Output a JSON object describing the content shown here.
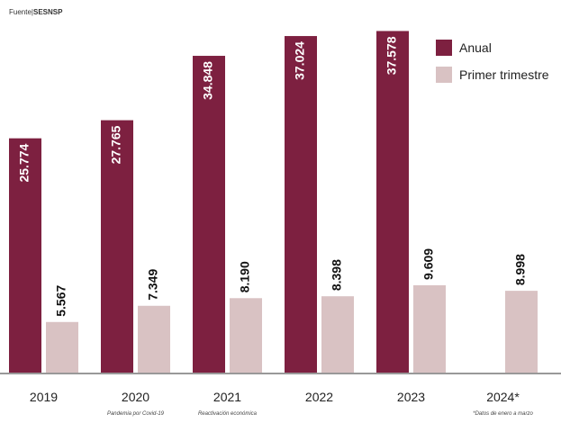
{
  "source": {
    "prefix": "Fuente|",
    "name": "SESNSP"
  },
  "colors": {
    "annual": "#7d2040",
    "quarter": "#d9c2c3",
    "axis": "#333333",
    "text": "#222222"
  },
  "chart_data": {
    "type": "bar",
    "categories": [
      "2019",
      "2020",
      "2021",
      "2022",
      "2023",
      "2024*"
    ],
    "category_notes": [
      "",
      "Pandemia por Covid-19",
      "Reactivación económica",
      "",
      "",
      "*Datos de enero a marzo"
    ],
    "series": [
      {
        "name": "Anual",
        "values": [
          25774,
          27765,
          34848,
          37024,
          37578,
          null
        ],
        "labels": [
          "25.774",
          "27.765",
          "34.848",
          "37.024",
          "37.578",
          ""
        ]
      },
      {
        "name": "Primer trimestre",
        "values": [
          5567,
          7349,
          8190,
          8398,
          9609,
          8998
        ],
        "labels": [
          "5.567",
          "7.349",
          "8.190",
          "8.398",
          "9.609",
          "8.998"
        ]
      }
    ],
    "ylim": [
      0,
      40000
    ],
    "grid": false,
    "legend_position": "top-right"
  }
}
